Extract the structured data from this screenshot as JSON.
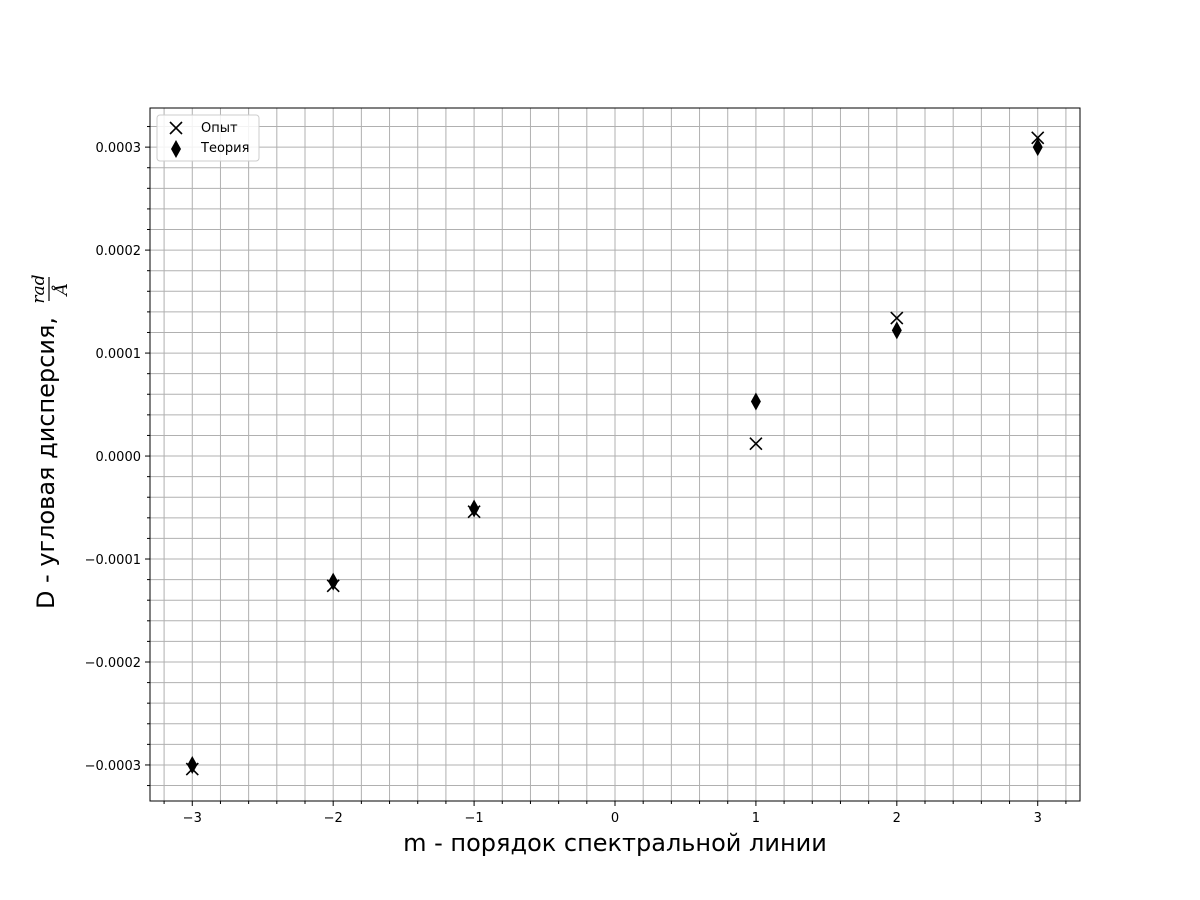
{
  "chart_data": {
    "type": "scatter",
    "title": "",
    "xlabel": "m - порядок спектральной линии",
    "ylabel": "D - угловая дисперсия,",
    "ylabel_unit_numerator": "rad",
    "ylabel_unit_denominator": "Å",
    "xlim": [
      -3.3,
      3.3
    ],
    "ylim": [
      -0.000335,
      0.000338
    ],
    "x_ticks": [
      -3,
      -2,
      -1,
      0,
      1,
      2,
      3
    ],
    "x_tick_labels": [
      "−3",
      "−2",
      "−1",
      "0",
      "1",
      "2",
      "3"
    ],
    "y_ticks": [
      -0.0003,
      -0.0002,
      -0.0001,
      0.0,
      0.0001,
      0.0002,
      0.0003
    ],
    "y_tick_labels": [
      "−0.0003",
      "−0.0002",
      "−0.0001",
      "0.0000",
      "0.0001",
      "0.0002",
      "0.0003"
    ],
    "x_minor_step": 0.2,
    "y_minor_step": 2e-05,
    "grid": true,
    "legend_position": "top-left",
    "series": [
      {
        "name": "Опыт",
        "marker": "x",
        "color": "#000000",
        "x": [
          -3,
          -2,
          -1,
          1,
          2,
          3
        ],
        "y": [
          -0.000304,
          -0.000126,
          -5.4e-05,
          1.2e-05,
          0.000134,
          0.000309
        ]
      },
      {
        "name": "Теория",
        "marker": "diamond",
        "color": "#000000",
        "x": [
          -3,
          -2,
          -1,
          1,
          2,
          3
        ],
        "y": [
          -0.0003,
          -0.000122,
          -5.1e-05,
          5.3e-05,
          0.000122,
          0.0003
        ]
      }
    ]
  }
}
